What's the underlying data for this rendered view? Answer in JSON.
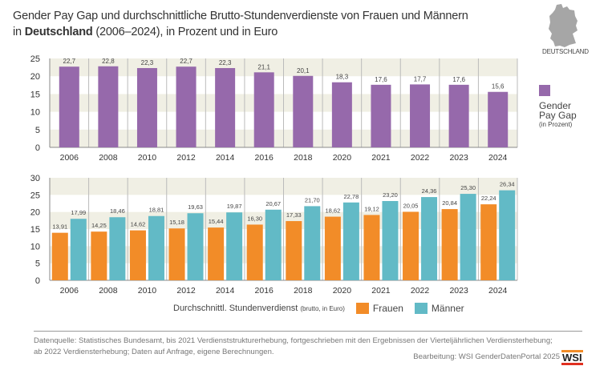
{
  "title": {
    "line1": "Gender Pay Gap und durchschnittliche Brutto-Stundenverdienste von Frauen und Männern",
    "line2_prefix": "in ",
    "line2_bold": "Deutschland",
    "line2_suffix": " (2006–2024), in Prozent und in Euro"
  },
  "map_label": "DEUTSCHLAND",
  "colors": {
    "gap": "#9669ab",
    "frauen": "#f28c28",
    "maenner": "#62bac6",
    "band": "#f0efe4"
  },
  "chart_data": [
    {
      "type": "bar",
      "title": "Gender Pay Gap",
      "legend": {
        "label_line1": "Gender",
        "label_line2": "Pay Gap",
        "unit": "(in Prozent)"
      },
      "categories": [
        "2006",
        "2008",
        "2010",
        "2012",
        "2014",
        "2016",
        "2018",
        "2020",
        "2021",
        "2022",
        "2023",
        "2024"
      ],
      "values": [
        22.7,
        22.8,
        22.3,
        22.7,
        22.3,
        21.1,
        20.1,
        18.3,
        17.6,
        17.7,
        17.6,
        15.6
      ],
      "value_labels": [
        "22,7",
        "22,8",
        "22,3",
        "22,7",
        "22,3",
        "21,1",
        "20,1",
        "18,3",
        "17,6",
        "17,7",
        "17,6",
        "15,6"
      ],
      "ylim": [
        0,
        25
      ],
      "yticks": [
        "0",
        "5",
        "10",
        "15",
        "20",
        "25"
      ]
    },
    {
      "type": "bar",
      "title": "Durchschnittl. Stundenverdienst",
      "subtitle": "(brutto, in Euro)",
      "categories": [
        "2006",
        "2008",
        "2010",
        "2012",
        "2014",
        "2016",
        "2018",
        "2020",
        "2021",
        "2022",
        "2023",
        "2024"
      ],
      "series": [
        {
          "name": "Frauen",
          "values": [
            13.91,
            14.25,
            14.62,
            15.18,
            15.44,
            16.3,
            17.33,
            18.62,
            19.12,
            20.05,
            20.84,
            22.24
          ],
          "value_labels": [
            "13,91",
            "14,25",
            "14,62",
            "15,18",
            "15,44",
            "16,30",
            "17,33",
            "18,62",
            "19,12",
            "20,05",
            "20,84",
            "22,24"
          ]
        },
        {
          "name": "Männer",
          "values": [
            17.99,
            18.46,
            18.81,
            19.63,
            19.87,
            20.67,
            21.7,
            22.78,
            23.2,
            24.36,
            25.3,
            26.34
          ],
          "value_labels": [
            "17,99",
            "18,46",
            "18,81",
            "19,63",
            "19,87",
            "20,67",
            "21,70",
            "22,78",
            "23,20",
            "24,36",
            "25,30",
            "26,34"
          ]
        }
      ],
      "ylim": [
        0,
        30
      ],
      "yticks": [
        "0",
        "5",
        "10",
        "15",
        "20",
        "25",
        "30"
      ]
    }
  ],
  "footer": {
    "source_line1": "Datenquelle: Statistisches Bundesamt, bis 2021 Verdienststrukturerhebung, fortgeschrieben mit den Ergebnissen der Vierteljährlichen Verdiensterhebung;",
    "source_line2": "ab 2022 Verdiensterhebung; Daten auf Anfrage, eigene Berechnungen.",
    "credit": "Bearbeitung: WSI GenderDatenPortal 2025",
    "logo": "WSI"
  }
}
